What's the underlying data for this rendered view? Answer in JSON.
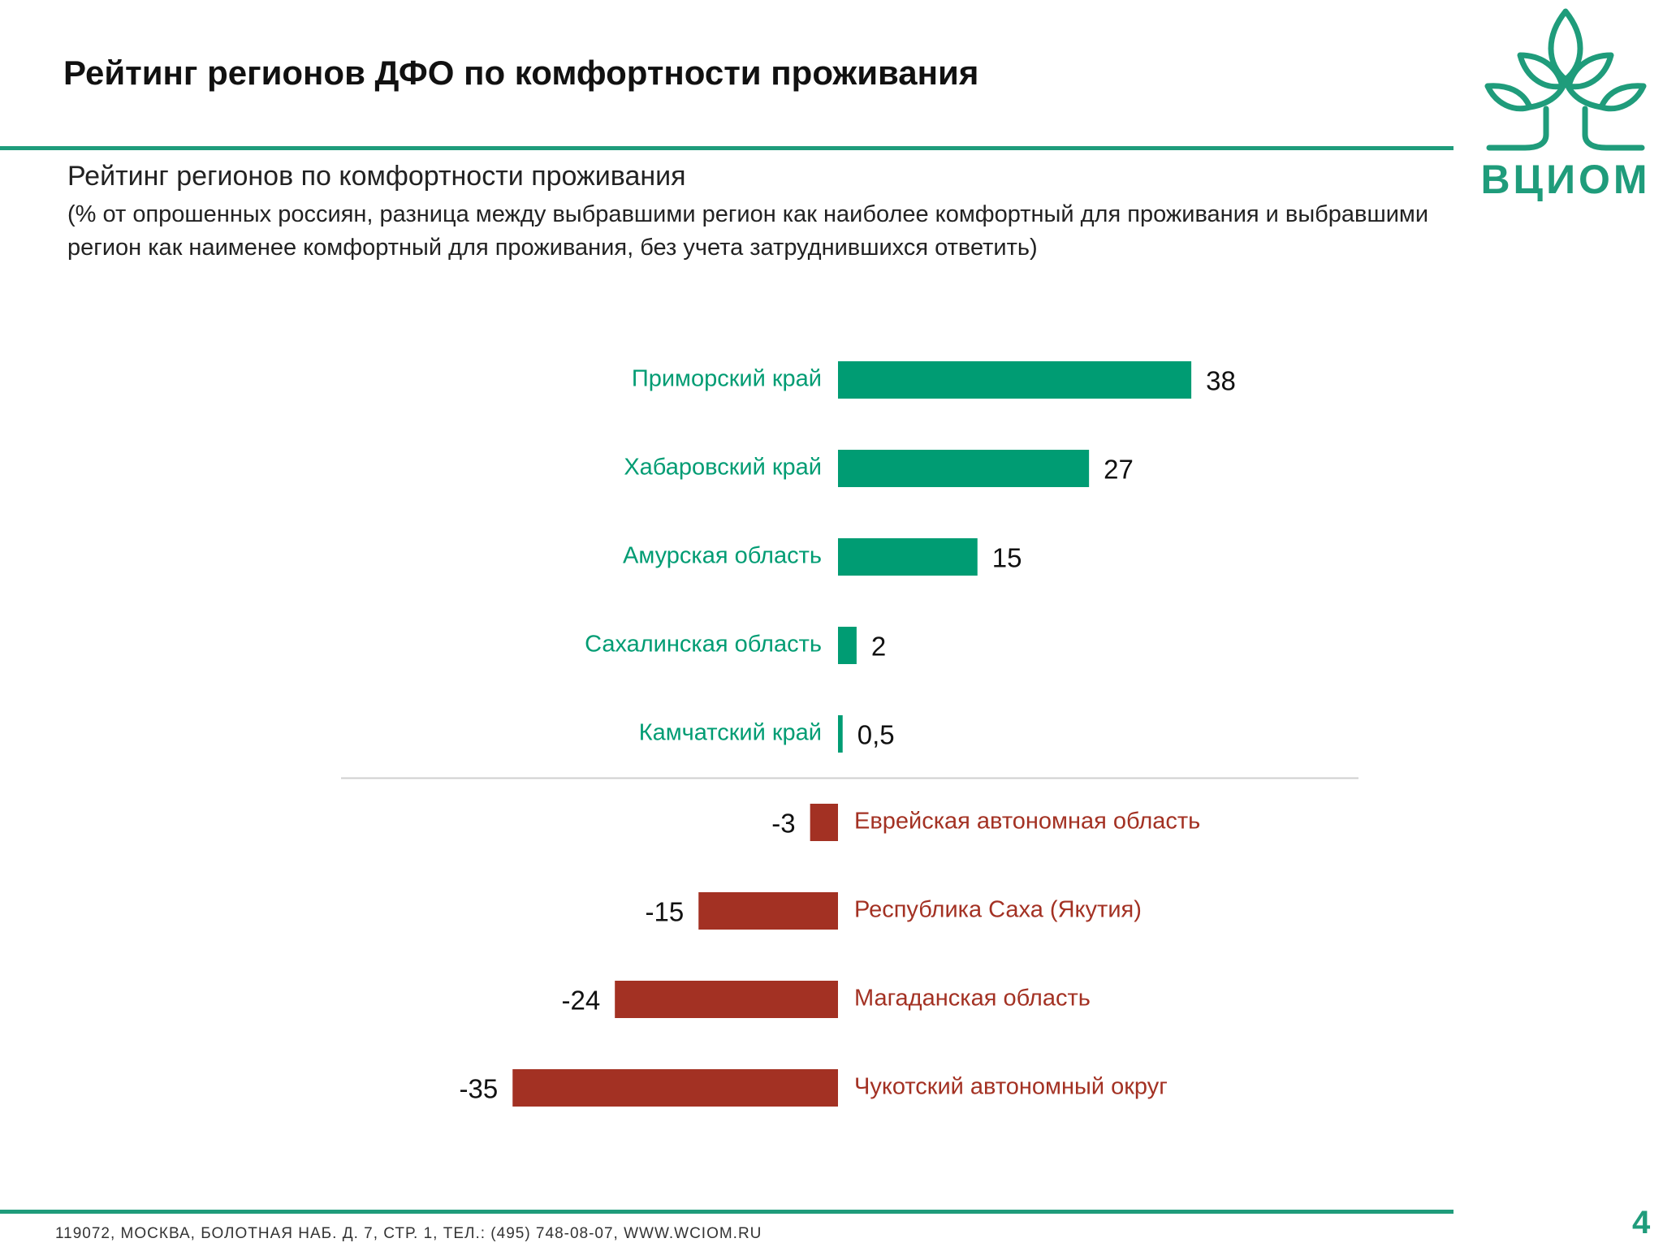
{
  "slide": {
    "title": "Рейтинг регионов ДФО по комфортности проживания",
    "footer": "119072, МОСКВА, БОЛОТНАЯ НАБ. Д. 7, СТР. 1, ТЕЛ.: (495) 748-08-07, WWW.WCIOM.RU",
    "page_number": "4",
    "logo_text": "ВЦИОМ"
  },
  "colors": {
    "positive": "#009c73",
    "negative": "#a33123",
    "brand": "#1f9c7b",
    "separator": "#cfcfcf"
  },
  "chart_data": {
    "type": "bar",
    "orientation": "horizontal",
    "title": "Рейтинг регионов по комфортности проживания",
    "subtitle": "(% от опрошенных россиян, разница между выбравшими регион как наиболее комфортный для проживания и выбравшими регион как наименее комфортный для проживания, без учета затруднившихся ответить)",
    "categories": [
      "Приморский край",
      "Хабаровский край",
      "Амурская область",
      "Сахалинская область",
      "Камчатский край",
      "Еврейская автономная область",
      "Республика Саха (Якутия)",
      "Магаданская область",
      "Чукотский автономный округ"
    ],
    "values": [
      38,
      27,
      15,
      2,
      0.5,
      -3,
      -15,
      -24,
      -35
    ],
    "value_labels": [
      "38",
      "27",
      "15",
      "2",
      "0,5",
      "-3",
      "-15",
      "-24",
      "-35"
    ],
    "grid": false,
    "legend": "none"
  }
}
